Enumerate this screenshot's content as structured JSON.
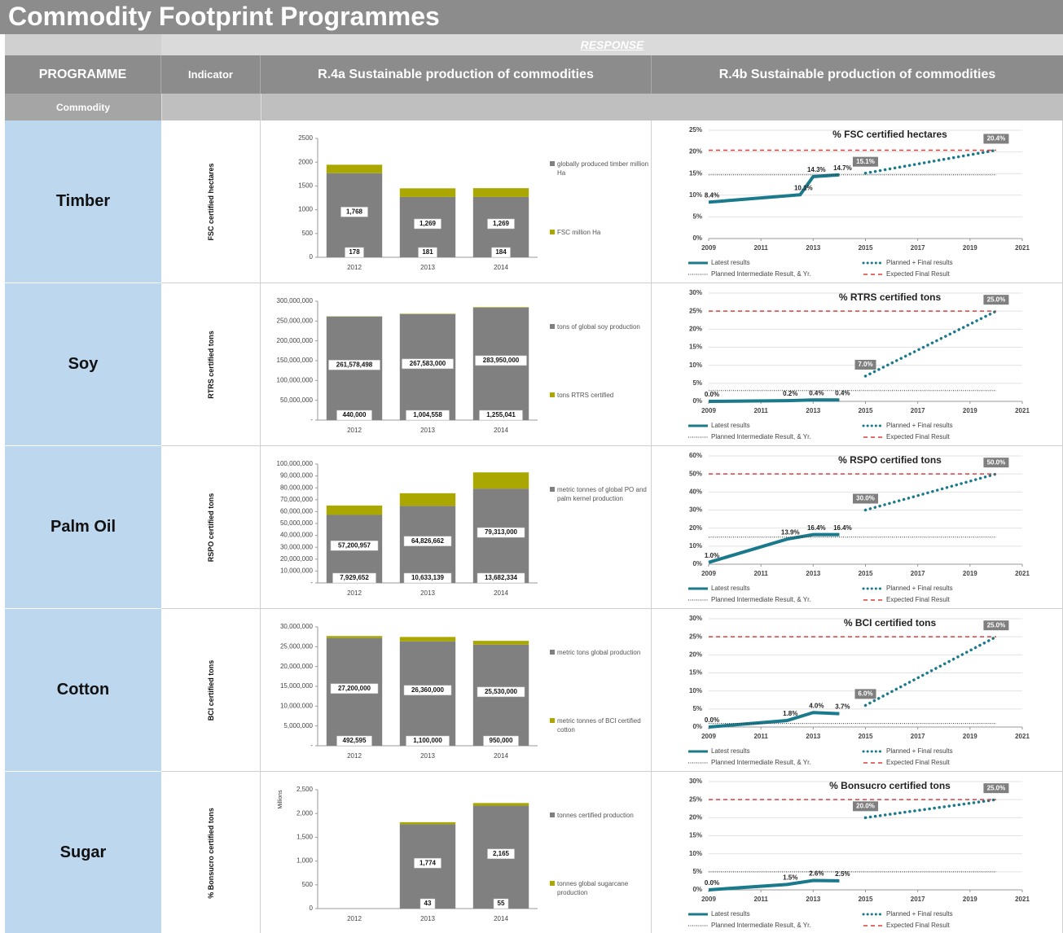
{
  "header": {
    "title": "Commodity Footprint Programmes",
    "response": "RESPONSE",
    "programme": "PROGRAMME",
    "indicator": "Indicator",
    "col_a": "R.4a Sustainable production of commodities",
    "col_b": "R.4b Sustainable production of commodities",
    "commodity": "Commodity"
  },
  "rows": [
    {
      "commodity": "Timber",
      "indicator": "FSC certified hectares",
      "bar_chart": {
        "type": "bar",
        "categories": [
          "2012",
          "2013",
          "2014"
        ],
        "ylim": [
          0,
          2500
        ],
        "yticks": [
          0,
          500,
          1000,
          1500,
          2000,
          2500
        ],
        "series": [
          {
            "name": "globally produced timber million Ha",
            "color": "#808080",
            "values": [
              1768,
              1269,
              1269
            ],
            "value_labels": [
              "1,768",
              "1,269",
              "1,269"
            ]
          },
          {
            "name": "FSC million Ha",
            "color": "#aaa800",
            "values": [
              178,
              181,
              184
            ]
          }
        ]
      },
      "line_chart": {
        "type": "line",
        "title": "% FSC certified hectares",
        "xlim": [
          2009,
          2021
        ],
        "xticks": [
          2009,
          2011,
          2013,
          2015,
          2017,
          2019,
          2021
        ],
        "ylim": [
          0,
          25
        ],
        "yticks": [
          {
            "value": 0,
            "label": "0%"
          },
          {
            "value": 5,
            "label": "5%"
          },
          {
            "value": 10,
            "label": "10%"
          },
          {
            "value": 15,
            "label": "15%"
          },
          {
            "value": 20,
            "label": "20%"
          },
          {
            "value": 25,
            "label": "25%"
          }
        ],
        "series": [
          {
            "name": "Latest results",
            "color": "#1a7a8c",
            "style": "solid",
            "label_style": "plain",
            "x": [
              2009,
              2012.5,
              2013,
              2014
            ],
            "values": [
              8.4,
              10.1,
              14.3,
              14.7
            ],
            "value_labels": [
              "8.4%",
              "10.1%",
              "14.3%",
              "14.7%"
            ]
          },
          {
            "name": "Planned + Final results",
            "color": "#1a7a8c",
            "style": "dotted",
            "label_style": "box",
            "x": [
              2015,
              2020
            ],
            "values": [
              15.1,
              20.4
            ],
            "value_labels": [
              "15.1%",
              "20.4%"
            ]
          },
          {
            "name": "Planned Intermediate Result, & Yr.",
            "color": "#333333",
            "style": "fine",
            "x": [
              2009,
              2020
            ],
            "values": [
              14.7,
              14.7
            ]
          },
          {
            "name": "Expected Final Result",
            "color": "#e03c3c",
            "style": "dashed",
            "x": [
              2009,
              2020
            ],
            "values": [
              20.4,
              20.4
            ]
          }
        ]
      }
    },
    {
      "commodity": "Soy",
      "indicator": "RTRS certified tons",
      "bar_chart": {
        "type": "bar",
        "categories": [
          "2012",
          "2013",
          "2014"
        ],
        "ylim": [
          0,
          300000000
        ],
        "yticks": [
          {
            "value": 0,
            "label": "-"
          },
          {
            "value": 50000000,
            "label": "50,000,000"
          },
          {
            "value": 100000000,
            "label": "100,000,000"
          },
          {
            "value": 150000000,
            "label": "150,000,000"
          },
          {
            "value": 200000000,
            "label": "200,000,000"
          },
          {
            "value": 250000000,
            "label": "250,000,000"
          },
          {
            "value": 300000000,
            "label": "300,000,000"
          }
        ],
        "series": [
          {
            "name": "tons of global soy production",
            "color": "#808080",
            "values": [
              261578498,
              267583000,
              283950000
            ],
            "value_labels": [
              "261,578,498",
              "267,583,000",
              "283,950,000"
            ]
          },
          {
            "name": "tons RTRS certified",
            "color": "#aaa800",
            "values": [
              440000,
              1004558,
              1255041
            ],
            "value_labels": [
              "440,000",
              "1,004,558",
              "1,255,041"
            ]
          }
        ]
      },
      "line_chart": {
        "type": "line",
        "title": "% RTRS certified tons",
        "xlim": [
          2009,
          2021
        ],
        "xticks": [
          2009,
          2011,
          2013,
          2015,
          2017,
          2019,
          2021
        ],
        "ylim": [
          0,
          30
        ],
        "yticks": [
          {
            "value": 0,
            "label": "0%"
          },
          {
            "value": 5,
            "label": "5%"
          },
          {
            "value": 10,
            "label": "10%"
          },
          {
            "value": 15,
            "label": "15%"
          },
          {
            "value": 20,
            "label": "20%"
          },
          {
            "value": 25,
            "label": "25%"
          },
          {
            "value": 30,
            "label": "30%"
          }
        ],
        "series": [
          {
            "name": "Latest results",
            "color": "#1a7a8c",
            "style": "solid",
            "label_style": "plain",
            "x": [
              2009,
              2012,
              2013,
              2014
            ],
            "values": [
              0.0,
              0.2,
              0.4,
              0.4
            ],
            "value_labels": [
              "0.0%",
              "0.2%",
              "0.4%",
              "0.4%"
            ]
          },
          {
            "name": "Planned + Final results",
            "color": "#1a7a8c",
            "style": "dotted",
            "label_style": "box",
            "x": [
              2015,
              2020
            ],
            "values": [
              7.0,
              25.0
            ],
            "value_labels": [
              "7.0%",
              "25.0%"
            ]
          },
          {
            "name": "Planned Intermediate Result, & Yr.",
            "color": "#333333",
            "style": "fine",
            "x": [
              2009,
              2020
            ],
            "values": [
              3,
              3
            ]
          },
          {
            "name": "Expected Final Result",
            "color": "#e03c3c",
            "style": "dashed",
            "x": [
              2009,
              2020
            ],
            "values": [
              25,
              25
            ]
          }
        ]
      }
    },
    {
      "commodity": "Palm Oil",
      "indicator": "RSPO certified tons",
      "bar_chart": {
        "type": "bar",
        "categories": [
          "2012",
          "2013",
          "2014"
        ],
        "ylim": [
          0,
          100000000
        ],
        "yticks": [
          {
            "value": 0,
            "label": "-"
          },
          {
            "value": 10000000,
            "label": "10,000,000"
          },
          {
            "value": 20000000,
            "label": "20,000,000"
          },
          {
            "value": 30000000,
            "label": "30,000,000"
          },
          {
            "value": 40000000,
            "label": "40,000,000"
          },
          {
            "value": 50000000,
            "label": "50,000,000"
          },
          {
            "value": 60000000,
            "label": "60,000,000"
          },
          {
            "value": 70000000,
            "label": "70,000,000"
          },
          {
            "value": 80000000,
            "label": "80,000,000"
          },
          {
            "value": 90000000,
            "label": "90,000,000"
          },
          {
            "value": 100000000,
            "label": "100,000,000"
          }
        ],
        "series": [
          {
            "name": "metric tonnes of global PO and palm kernel production",
            "color": "#808080",
            "values": [
              57200957,
              64826662,
              79313000
            ],
            "value_labels": [
              "57,200,957",
              "64,826,662",
              "79,313,000"
            ]
          },
          {
            "color": "#aaa800",
            "values": [
              7929652,
              10633139,
              13682334
            ],
            "value_labels": [
              "7,929,652",
              "10,633,139",
              "13,682,334"
            ]
          }
        ]
      },
      "line_chart": {
        "type": "line",
        "title": "% RSPO certified tons",
        "xlim": [
          2009,
          2021
        ],
        "xticks": [
          2009,
          2011,
          2013,
          2015,
          2017,
          2019,
          2021
        ],
        "ylim": [
          0,
          60
        ],
        "yticks": [
          {
            "value": 0,
            "label": "0%"
          },
          {
            "value": 10,
            "label": "10%"
          },
          {
            "value": 20,
            "label": "20%"
          },
          {
            "value": 30,
            "label": "30%"
          },
          {
            "value": 40,
            "label": "40%"
          },
          {
            "value": 50,
            "label": "50%"
          },
          {
            "value": 60,
            "label": "60%"
          }
        ],
        "series": [
          {
            "name": "Latest results",
            "color": "#1a7a8c",
            "style": "solid",
            "label_style": "plain",
            "x": [
              2009,
              2012,
              2013,
              2014
            ],
            "values": [
              1.0,
              13.9,
              16.4,
              16.4
            ],
            "value_labels": [
              "1.0%",
              "13.9%",
              "16.4%",
              "16.4%"
            ]
          },
          {
            "name": "Planned + Final results",
            "color": "#1a7a8c",
            "style": "dotted",
            "label_style": "box",
            "x": [
              2015,
              2020
            ],
            "values": [
              30.0,
              50.0
            ],
            "value_labels": [
              "30.0%",
              "50.0%"
            ]
          },
          {
            "name": "Planned Intermediate Result, & Yr.",
            "color": "#333333",
            "style": "fine",
            "x": [
              2009,
              2020
            ],
            "values": [
              15,
              15
            ]
          },
          {
            "name": "Expected Final Result",
            "color": "#e03c3c",
            "style": "dashed",
            "x": [
              2009,
              2020
            ],
            "values": [
              50,
              50
            ]
          }
        ]
      }
    },
    {
      "commodity": "Cotton",
      "indicator": "BCI certified tons",
      "bar_chart": {
        "type": "bar",
        "categories": [
          "2012",
          "2013",
          "2014"
        ],
        "ylim": [
          0,
          30000000
        ],
        "yticks": [
          {
            "value": 0,
            "label": "-"
          },
          {
            "value": 5000000,
            "label": "5,000,000"
          },
          {
            "value": 10000000,
            "label": "10,000,000"
          },
          {
            "value": 15000000,
            "label": "15,000,000"
          },
          {
            "value": 20000000,
            "label": "20,000,000"
          },
          {
            "value": 25000000,
            "label": "25,000,000"
          },
          {
            "value": 30000000,
            "label": "30,000,000"
          }
        ],
        "series": [
          {
            "name": "metric tons global production",
            "color": "#808080",
            "values": [
              27200000,
              26360000,
              25530000
            ],
            "value_labels": [
              "27,200,000",
              "26,360,000",
              "25,530,000"
            ]
          },
          {
            "name": "metric tonnes of BCI certified cotton",
            "color": "#aaa800",
            "values": [
              492595,
              1100000,
              950000
            ],
            "value_labels": [
              "492,595",
              "1,100,000",
              "950,000"
            ]
          }
        ]
      },
      "line_chart": {
        "type": "line",
        "title": "% BCI certified tons",
        "xlim": [
          2009,
          2021
        ],
        "xticks": [
          2009,
          2011,
          2013,
          2015,
          2017,
          2019,
          2021
        ],
        "ylim": [
          0,
          30
        ],
        "yticks": [
          {
            "value": 0,
            "label": "0%"
          },
          {
            "value": 5,
            "label": "5%"
          },
          {
            "value": 10,
            "label": "10%"
          },
          {
            "value": 15,
            "label": "15%"
          },
          {
            "value": 20,
            "label": "20%"
          },
          {
            "value": 25,
            "label": "25%"
          },
          {
            "value": 30,
            "label": "30%"
          }
        ],
        "series": [
          {
            "name": "Latest results",
            "color": "#1a7a8c",
            "style": "solid",
            "label_style": "plain",
            "x": [
              2009,
              2012,
              2013,
              2014
            ],
            "values": [
              0.0,
              1.8,
              4.0,
              3.7
            ],
            "value_labels": [
              "0.0%",
              "1.8%",
              "4.0%",
              "3.7%"
            ]
          },
          {
            "name": "Planned + Final results",
            "color": "#1a7a8c",
            "style": "dotted",
            "label_style": "box",
            "x": [
              2015,
              2020
            ],
            "values": [
              6.0,
              25.0
            ],
            "value_labels": [
              "6.0%",
              "25.0%"
            ]
          },
          {
            "name": "Planned Intermediate Result, & Yr.",
            "color": "#333333",
            "style": "fine",
            "x": [
              2009,
              2020
            ],
            "values": [
              1,
              1
            ]
          },
          {
            "name": "Expected Final Result",
            "color": "#e03c3c",
            "style": "dashed",
            "x": [
              2009,
              2020
            ],
            "values": [
              25,
              25
            ]
          }
        ]
      }
    },
    {
      "commodity": "Sugar",
      "indicator": "% Bonsucro certified tons",
      "bar_chart": {
        "type": "bar",
        "categories": [
          "2012",
          "2013",
          "2014"
        ],
        "ylim": [
          0,
          2500
        ],
        "y_label": "Millions",
        "yticks": [
          0,
          500,
          {
            "value": 1000,
            "label": "1,000"
          },
          {
            "value": 1500,
            "label": "1,500"
          },
          {
            "value": 2000,
            "label": "2,000"
          },
          {
            "value": 2500,
            "label": "2,500"
          }
        ],
        "series": [
          {
            "name": "tonnes certified production",
            "color": "#808080",
            "values": [
              null,
              1774,
              2165
            ],
            "value_labels": [
              null,
              "1,774",
              "2,165"
            ]
          },
          {
            "name": "tonnes global sugarcane production",
            "color": "#aaa800",
            "values": [
              null,
              43,
              55
            ]
          }
        ]
      },
      "line_chart": {
        "type": "line",
        "title": "% Bonsucro certified tons",
        "xlim": [
          2009,
          2021
        ],
        "xticks": [
          2009,
          2011,
          2013,
          2015,
          2017,
          2019,
          2021
        ],
        "ylim": [
          0,
          30
        ],
        "yticks": [
          {
            "value": 0,
            "label": "0%"
          },
          {
            "value": 5,
            "label": "5%"
          },
          {
            "value": 10,
            "label": "10%"
          },
          {
            "value": 15,
            "label": "15%"
          },
          {
            "value": 20,
            "label": "20%"
          },
          {
            "value": 25,
            "label": "25%"
          },
          {
            "value": 30,
            "label": "30%"
          }
        ],
        "series": [
          {
            "name": "Latest results",
            "color": "#1a7a8c",
            "style": "solid",
            "label_style": "plain",
            "x": [
              2009,
              2012,
              2013,
              2014
            ],
            "values": [
              0.0,
              1.5,
              2.6,
              2.5
            ],
            "value_labels": [
              "0.0%",
              "1.5%",
              "2.6%",
              "2.5%"
            ]
          },
          {
            "name": "Planned + Final results",
            "color": "#1a7a8c",
            "style": "dotted",
            "label_style": "box",
            "x": [
              2015,
              2020
            ],
            "values": [
              20.0,
              25.0
            ],
            "value_labels": [
              "20.0%",
              "25.0%"
            ]
          },
          {
            "name": "Planned Intermediate Result, & Yr.",
            "color": "#333333",
            "style": "fine",
            "x": [
              2009,
              2020
            ],
            "values": [
              5,
              5
            ]
          },
          {
            "name": "Expected Final Result",
            "color": "#e03c3c",
            "style": "dashed",
            "x": [
              2009,
              2020
            ],
            "values": [
              25,
              25
            ]
          }
        ]
      }
    }
  ]
}
